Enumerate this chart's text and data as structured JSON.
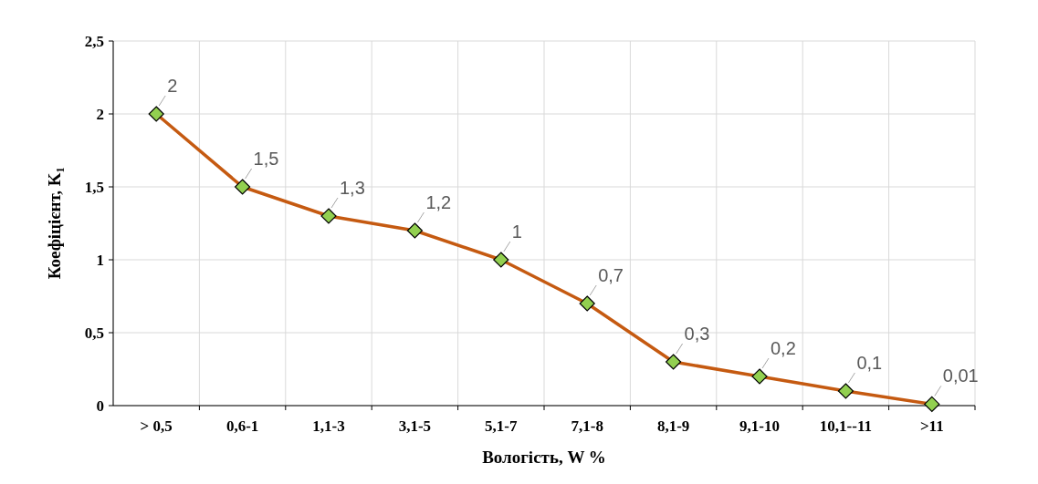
{
  "chart_data": {
    "type": "line",
    "xlabel": "Вологість, W %",
    "ylabel": "Коефіцієнт, K₁",
    "categories": [
      "> 0,5",
      "0,6-1",
      "1,1-3",
      "3,1-5",
      "5,1-7",
      "7,1-8",
      "8,1-9",
      "9,1-10",
      "10,1--11",
      ">11"
    ],
    "series": [
      {
        "color": "#c55a11",
        "values": [
          2,
          1.5,
          1.3,
          1.2,
          1,
          0.7,
          0.3,
          0.2,
          0.1,
          0.01
        ],
        "value_labels": [
          "2",
          "1,5",
          "1,3",
          "1,2",
          "1",
          "0,7",
          "0,3",
          "0,2",
          "0,1",
          "0,01"
        ]
      }
    ],
    "ylim": [
      0,
      2.5
    ],
    "yticks": [
      {
        "value": 0,
        "label": "0"
      },
      {
        "value": 0.5,
        "label": "0,5"
      },
      {
        "value": 1,
        "label": "1"
      },
      {
        "value": 1.5,
        "label": "1,5"
      },
      {
        "value": 2,
        "label": "2"
      },
      {
        "value": 2.5,
        "label": "2,5"
      }
    ],
    "grid": true,
    "marker": "diamond",
    "line_style": "solid"
  }
}
